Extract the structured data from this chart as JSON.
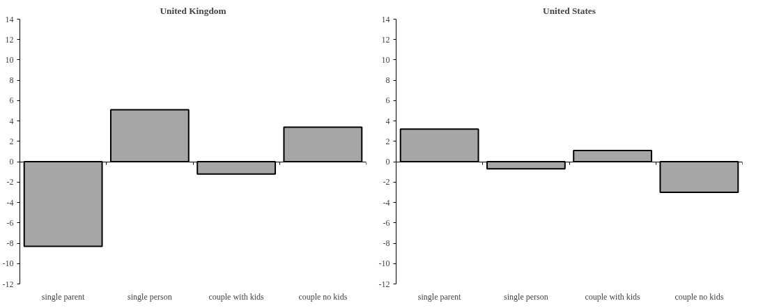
{
  "chart_data": [
    {
      "type": "bar",
      "title": "United Kingdom",
      "categories": [
        "single parent",
        "single person",
        "couple with kids",
        "couple no kids"
      ],
      "values": [
        -8.3,
        5.1,
        -1.2,
        3.4
      ],
      "color": "#a6a6a6",
      "ylim": [
        -12,
        14
      ],
      "yticks": [
        -12,
        -10,
        -8,
        -6,
        -4,
        -2,
        0,
        2,
        4,
        6,
        8,
        10,
        12,
        14
      ]
    },
    {
      "type": "bar",
      "title": "United States",
      "categories": [
        "single parent",
        "single person",
        "couple with kids",
        "couple no kids"
      ],
      "values": [
        3.2,
        -0.7,
        1.1,
        -3.0
      ],
      "color": "#a6a6a6",
      "ylim": [
        -12,
        14
      ],
      "yticks": [
        -12,
        -10,
        -8,
        -6,
        -4,
        -2,
        0,
        2,
        4,
        6,
        8,
        10,
        12,
        14
      ]
    }
  ]
}
